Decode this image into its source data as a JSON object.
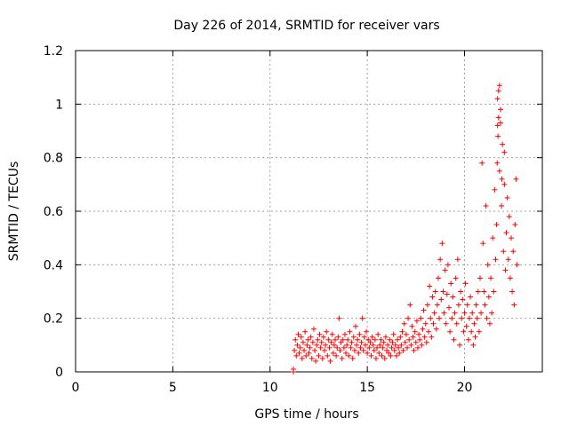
{
  "chart_data": {
    "type": "scatter",
    "title": "Day 226 of 2014, SRMTID for receiver vars",
    "xlabel": "GPS time / hours",
    "ylabel": "SRMTID / TECUs",
    "xlim": [
      0,
      24
    ],
    "ylim": [
      0,
      1.2
    ],
    "xticks": [
      0,
      5,
      10,
      15,
      20
    ],
    "xtick_labels": [
      "0",
      "5",
      "10",
      "15",
      "20"
    ],
    "yticks": [
      0,
      0.2,
      0.4,
      0.6,
      0.8,
      1.0,
      1.2
    ],
    "ytick_labels": [
      "0",
      "0.2",
      "0.4",
      "0.6",
      "0.8",
      "1",
      "1.2"
    ],
    "grid": true,
    "marker": "+",
    "color": "#ff0000",
    "series": [
      {
        "name": "SRMTID",
        "points": [
          [
            11.2,
            0.0
          ],
          [
            11.2,
            0.01
          ],
          [
            11.25,
            0.08
          ],
          [
            11.3,
            0.12
          ],
          [
            11.35,
            0.06
          ],
          [
            11.4,
            0.1
          ],
          [
            11.45,
            0.14
          ],
          [
            11.5,
            0.07
          ],
          [
            11.55,
            0.09
          ],
          [
            11.6,
            0.13
          ],
          [
            11.65,
            0.05
          ],
          [
            11.7,
            0.11
          ],
          [
            11.75,
            0.08
          ],
          [
            11.8,
            0.15
          ],
          [
            11.85,
            0.06
          ],
          [
            11.9,
            0.1
          ],
          [
            11.95,
            0.12
          ],
          [
            12.0,
            0.07
          ],
          [
            12.05,
            0.09
          ],
          [
            12.1,
            0.13
          ],
          [
            12.15,
            0.05
          ],
          [
            12.2,
            0.11
          ],
          [
            12.25,
            0.16
          ],
          [
            12.3,
            0.08
          ],
          [
            12.35,
            0.04
          ],
          [
            12.4,
            0.1
          ],
          [
            12.45,
            0.12
          ],
          [
            12.5,
            0.06
          ],
          [
            12.55,
            0.14
          ],
          [
            12.6,
            0.09
          ],
          [
            12.65,
            0.11
          ],
          [
            12.7,
            0.05
          ],
          [
            12.75,
            0.13
          ],
          [
            12.8,
            0.08
          ],
          [
            12.85,
            0.1
          ],
          [
            12.9,
            0.15
          ],
          [
            12.95,
            0.06
          ],
          [
            13.0,
            0.12
          ],
          [
            13.05,
            0.09
          ],
          [
            13.1,
            0.04
          ],
          [
            13.15,
            0.11
          ],
          [
            13.2,
            0.14
          ],
          [
            13.25,
            0.07
          ],
          [
            13.3,
            0.1
          ],
          [
            13.35,
            0.12
          ],
          [
            13.4,
            0.06
          ],
          [
            13.45,
            0.09
          ],
          [
            13.5,
            0.13
          ],
          [
            13.55,
            0.2
          ],
          [
            13.6,
            0.08
          ],
          [
            13.65,
            0.11
          ],
          [
            13.7,
            0.05
          ],
          [
            13.75,
            0.12
          ],
          [
            13.8,
            0.09
          ],
          [
            13.85,
            0.14
          ],
          [
            13.9,
            0.07
          ],
          [
            13.95,
            0.1
          ],
          [
            14.0,
            0.12
          ],
          [
            14.05,
            0.06
          ],
          [
            14.1,
            0.15
          ],
          [
            14.15,
            0.09
          ],
          [
            14.2,
            0.11
          ],
          [
            14.25,
            0.05
          ],
          [
            14.3,
            0.13
          ],
          [
            14.35,
            0.08
          ],
          [
            14.4,
            0.17
          ],
          [
            14.45,
            0.1
          ],
          [
            14.5,
            0.12
          ],
          [
            14.55,
            0.07
          ],
          [
            14.6,
            0.14
          ],
          [
            14.65,
            0.09
          ],
          [
            14.7,
            0.11
          ],
          [
            14.75,
            0.2
          ],
          [
            14.8,
            0.08
          ],
          [
            14.85,
            0.13
          ],
          [
            14.9,
            0.1
          ],
          [
            14.95,
            0.15
          ],
          [
            15.0,
            0.07
          ],
          [
            15.05,
            0.12
          ],
          [
            15.1,
            0.09
          ],
          [
            15.15,
            0.11
          ],
          [
            15.2,
            0.06
          ],
          [
            15.25,
            0.13
          ],
          [
            15.3,
            0.1
          ],
          [
            15.35,
            0.08
          ],
          [
            15.4,
            0.12
          ],
          [
            15.45,
            0.05
          ],
          [
            15.5,
            0.09
          ],
          [
            15.55,
            0.14
          ],
          [
            15.6,
            0.07
          ],
          [
            15.65,
            0.1
          ],
          [
            15.7,
            0.12
          ],
          [
            15.75,
            0.06
          ],
          [
            15.8,
            0.09
          ],
          [
            15.85,
            0.11
          ],
          [
            15.9,
            0.05
          ],
          [
            15.95,
            0.13
          ],
          [
            16.0,
            0.08
          ],
          [
            16.05,
            0.1
          ],
          [
            16.1,
            0.07
          ],
          [
            16.15,
            0.12
          ],
          [
            16.2,
            0.06
          ],
          [
            16.25,
            0.09
          ],
          [
            16.3,
            0.11
          ],
          [
            16.35,
            0.14
          ],
          [
            16.4,
            0.08
          ],
          [
            16.45,
            0.1
          ],
          [
            16.5,
            0.06
          ],
          [
            16.55,
            0.12
          ],
          [
            16.6,
            0.09
          ],
          [
            16.65,
            0.07
          ],
          [
            16.7,
            0.13
          ],
          [
            16.75,
            0.1
          ],
          [
            16.8,
            0.15
          ],
          [
            16.85,
            0.08
          ],
          [
            16.9,
            0.18
          ],
          [
            16.95,
            0.11
          ],
          [
            17.0,
            0.14
          ],
          [
            17.05,
            0.09
          ],
          [
            17.1,
            0.2
          ],
          [
            17.15,
            0.12
          ],
          [
            17.2,
            0.25
          ],
          [
            17.25,
            0.1
          ],
          [
            17.3,
            0.17
          ],
          [
            17.35,
            0.13
          ],
          [
            17.4,
            0.08
          ],
          [
            17.45,
            0.15
          ],
          [
            17.5,
            0.11
          ],
          [
            17.55,
            0.19
          ],
          [
            17.6,
            0.09
          ],
          [
            17.65,
            0.14
          ],
          [
            17.7,
            0.12
          ],
          [
            17.75,
            0.2
          ],
          [
            17.8,
            0.1
          ],
          [
            17.85,
            0.16
          ],
          [
            17.9,
            0.23
          ],
          [
            17.95,
            0.13
          ],
          [
            18.0,
            0.18
          ],
          [
            18.05,
            0.11
          ],
          [
            18.1,
            0.25
          ],
          [
            18.15,
            0.15
          ],
          [
            18.2,
            0.32
          ],
          [
            18.25,
            0.2
          ],
          [
            18.3,
            0.13
          ],
          [
            18.35,
            0.28
          ],
          [
            18.4,
            0.18
          ],
          [
            18.45,
            0.22
          ],
          [
            18.5,
            0.3
          ],
          [
            18.55,
            0.16
          ],
          [
            18.6,
            0.25
          ],
          [
            18.65,
            0.35
          ],
          [
            18.7,
            0.2
          ],
          [
            18.75,
            0.42
          ],
          [
            18.8,
            0.27
          ],
          [
            18.85,
            0.48
          ],
          [
            18.9,
            0.3
          ],
          [
            18.95,
            0.22
          ],
          [
            19.0,
            0.38
          ],
          [
            19.05,
            0.18
          ],
          [
            19.1,
            0.29
          ],
          [
            19.15,
            0.4
          ],
          [
            19.2,
            0.24
          ],
          [
            19.25,
            0.15
          ],
          [
            19.3,
            0.33
          ],
          [
            19.35,
            0.2
          ],
          [
            19.4,
            0.28
          ],
          [
            19.45,
            0.12
          ],
          [
            19.5,
            0.22
          ],
          [
            19.55,
            0.35
          ],
          [
            19.6,
            0.18
          ],
          [
            19.65,
            0.42
          ],
          [
            19.7,
            0.25
          ],
          [
            19.75,
            0.1
          ],
          [
            19.8,
            0.3
          ],
          [
            19.85,
            0.2
          ],
          [
            19.9,
            0.27
          ],
          [
            19.95,
            0.15
          ],
          [
            20.0,
            0.22
          ],
          [
            20.05,
            0.33
          ],
          [
            20.1,
            0.17
          ],
          [
            20.15,
            0.25
          ],
          [
            20.2,
            0.12
          ],
          [
            20.25,
            0.2
          ],
          [
            20.3,
            0.28
          ],
          [
            20.35,
            0.15
          ],
          [
            20.4,
            0.22
          ],
          [
            20.45,
            0.1
          ],
          [
            20.5,
            0.18
          ],
          [
            20.55,
            0.13
          ],
          [
            20.6,
            0.25
          ],
          [
            20.65,
            0.2
          ],
          [
            20.7,
            0.3
          ],
          [
            20.75,
            0.15
          ],
          [
            20.8,
            0.35
          ],
          [
            20.85,
            0.22
          ],
          [
            20.9,
            0.78
          ],
          [
            20.95,
            0.48
          ],
          [
            21.0,
            0.3
          ],
          [
            21.05,
            0.25
          ],
          [
            21.1,
            0.62
          ],
          [
            21.15,
            0.2
          ],
          [
            21.2,
            0.4
          ],
          [
            21.25,
            0.28
          ],
          [
            21.3,
            0.18
          ],
          [
            21.35,
            0.35
          ],
          [
            21.4,
            0.22
          ],
          [
            21.45,
            0.5
          ],
          [
            21.5,
            0.3
          ],
          [
            21.55,
            0.68
          ],
          [
            21.6,
            0.42
          ],
          [
            21.65,
            0.55
          ],
          [
            21.7,
            0.92
          ],
          [
            21.75,
            1.05
          ],
          [
            21.8,
            0.75
          ],
          [
            21.85,
            0.98
          ],
          [
            21.9,
            0.62
          ],
          [
            21.95,
            0.85
          ],
          [
            22.0,
            0.45
          ],
          [
            22.05,
            0.7
          ],
          [
            22.1,
            0.38
          ],
          [
            22.15,
            0.52
          ],
          [
            22.2,
            0.65
          ],
          [
            22.25,
            0.42
          ],
          [
            22.3,
            0.58
          ],
          [
            22.35,
            0.35
          ],
          [
            22.4,
            0.5
          ],
          [
            22.45,
            0.3
          ],
          [
            22.5,
            0.45
          ],
          [
            22.55,
            0.25
          ],
          [
            22.6,
            0.55
          ],
          [
            22.65,
            0.72
          ],
          [
            22.7,
            0.4
          ],
          [
            21.7,
            1.02
          ],
          [
            21.75,
            0.95
          ],
          [
            21.8,
            1.07
          ],
          [
            21.72,
            0.88
          ],
          [
            21.85,
            0.93
          ],
          [
            21.68,
            0.78
          ],
          [
            21.92,
            0.72
          ],
          [
            22.05,
            0.82
          ]
        ]
      }
    ]
  }
}
